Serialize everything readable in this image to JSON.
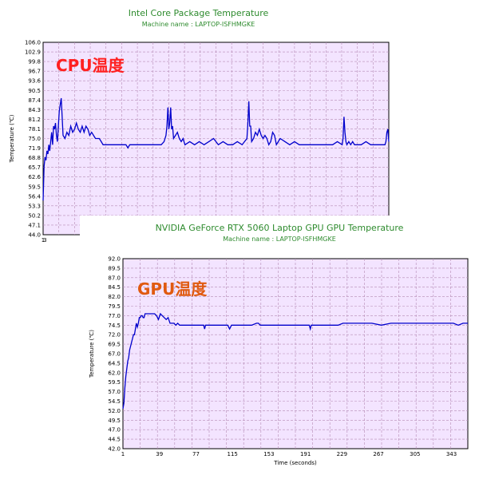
{
  "colors": {
    "cpu_label": "#ff2020",
    "gpu_label": "#e05a10",
    "plot_bg": "#f3e4ff",
    "line": "#0000cc",
    "grid": "#b58ab5",
    "title": "#2e8b2e"
  },
  "chart_data": [
    {
      "type": "line",
      "title": "Intel Core Package Temperature",
      "subtitle": "Machine name : LAPTOP-ISFHMGKE",
      "overlay_label": "CPU温度",
      "ylabel": "Temperature (℃)",
      "xlabel": "",
      "ylim": [
        44.0,
        106.0
      ],
      "yticks": [
        "106.0",
        "102.9",
        "99.8",
        "96.7",
        "93.6",
        "90.5",
        "87.4",
        "84.3",
        "81.2",
        "78.1",
        "75.0",
        "71.9",
        "68.8",
        "65.7",
        "62.6",
        "59.5",
        "56.4",
        "53.3",
        "50.2",
        "47.1",
        "44.0"
      ],
      "xlim": [
        1,
        364
      ],
      "xticks": [
        "1",
        "3"
      ],
      "grid": true,
      "series": [
        {
          "x": [
            1,
            2,
            3,
            4,
            5,
            6,
            7,
            8,
            9,
            10,
            11,
            12,
            13,
            14,
            15,
            16,
            17,
            18,
            20,
            22,
            24,
            26,
            28,
            30,
            32,
            34,
            36,
            38,
            40,
            42,
            44,
            46,
            48,
            50,
            52,
            54,
            56,
            58,
            60,
            62,
            64,
            66,
            68,
            70,
            72,
            74,
            76,
            78,
            80,
            82,
            84,
            86,
            88,
            90,
            92,
            94,
            96,
            100,
            110,
            120,
            125,
            128,
            130,
            131,
            132,
            133,
            134,
            135,
            136,
            137,
            138,
            140,
            142,
            144,
            146,
            148,
            150,
            155,
            160,
            165,
            170,
            175,
            180,
            185,
            190,
            195,
            200,
            205,
            210,
            215,
            216,
            217,
            218,
            219,
            220,
            222,
            224,
            226,
            228,
            230,
            232,
            234,
            236,
            238,
            240,
            242,
            244,
            246,
            248,
            250,
            255,
            260,
            265,
            270,
            275,
            280,
            290,
            300,
            305,
            310,
            315,
            316,
            317,
            318,
            319,
            320,
            322,
            324,
            326,
            328,
            330,
            335,
            340,
            345,
            350,
            355,
            360,
            361,
            362,
            363,
            364
          ],
          "y": [
            55,
            66,
            69,
            68,
            71,
            70,
            73,
            71,
            74,
            77,
            73,
            79,
            78,
            80,
            76,
            74,
            79,
            84,
            88,
            76,
            75,
            77,
            76,
            79,
            77,
            78,
            80,
            78,
            77,
            79,
            77,
            79,
            78,
            76,
            77,
            76,
            75,
            75,
            75,
            74,
            73,
            73,
            73,
            73,
            73,
            73,
            73,
            73,
            73,
            73,
            73,
            73,
            73,
            72,
            73,
            73,
            73,
            73,
            73,
            73,
            73,
            74,
            76,
            79,
            85,
            78,
            80,
            85,
            78,
            79,
            75,
            76,
            77,
            75,
            74,
            75,
            73,
            74,
            73,
            74,
            73,
            74,
            75,
            73,
            74,
            73,
            73,
            74,
            73,
            75,
            80,
            87,
            79,
            79,
            74,
            75,
            77,
            76,
            78,
            76,
            75,
            76,
            75,
            73,
            74,
            77,
            76,
            73,
            74,
            75,
            74,
            73,
            74,
            73,
            73,
            73,
            73,
            73,
            73,
            74,
            73,
            75,
            82,
            77,
            74,
            73,
            74,
            73,
            74,
            73,
            73,
            73,
            74,
            73,
            73,
            73,
            73,
            74,
            77,
            78,
            74
          ]
        }
      ]
    },
    {
      "type": "line",
      "title": "NVIDIA GeForce RTX 5060 Laptop GPU GPU Temperature",
      "subtitle": "Machine name : LAPTOP-ISFHMGKE",
      "overlay_label": "GPU温度",
      "ylabel": "Temperature (℃)",
      "xlabel": "Time (seconds)",
      "ylim": [
        42.0,
        92.0
      ],
      "yticks": [
        "92.0",
        "89.5",
        "87.0",
        "84.5",
        "82.0",
        "79.5",
        "77.0",
        "74.5",
        "72.0",
        "69.5",
        "67.0",
        "64.5",
        "62.0",
        "59.5",
        "57.0",
        "54.5",
        "52.0",
        "49.5",
        "47.0",
        "44.5",
        "42.0"
      ],
      "xlim": [
        1,
        360
      ],
      "xticks": [
        "1",
        "39",
        "77",
        "115",
        "153",
        "191",
        "229",
        "267",
        "305",
        "343"
      ],
      "grid": true,
      "series": [
        {
          "x": [
            1,
            2,
            3,
            4,
            5,
            6,
            7,
            8,
            9,
            10,
            11,
            12,
            13,
            14,
            15,
            16,
            17,
            18,
            19,
            20,
            21,
            22,
            23,
            24,
            25,
            26,
            28,
            30,
            32,
            34,
            36,
            38,
            40,
            42,
            44,
            46,
            48,
            50,
            52,
            54,
            56,
            58,
            60,
            62,
            64,
            66,
            70,
            75,
            80,
            85,
            86,
            87,
            88,
            90,
            95,
            100,
            105,
            110,
            112,
            114,
            120,
            125,
            130,
            135,
            140,
            142,
            144,
            150,
            160,
            170,
            175,
            180,
            190,
            195,
            196,
            197,
            200,
            210,
            220,
            225,
            230,
            240,
            250,
            260,
            270,
            280,
            290,
            300,
            310,
            320,
            330,
            340,
            345,
            350,
            355,
            360
          ],
          "y": [
            52.5,
            54,
            58,
            61,
            63,
            65,
            66,
            68,
            69,
            70,
            71,
            72,
            72,
            73.5,
            75,
            74,
            75,
            76.5,
            76.5,
            77,
            77,
            76.5,
            76.5,
            77.5,
            77.5,
            77.5,
            77.5,
            77.5,
            77.5,
            77.5,
            77,
            76,
            77.5,
            77,
            76.5,
            76,
            76.5,
            75,
            75,
            75,
            74.5,
            75,
            74.5,
            74.5,
            74.5,
            74.5,
            74.5,
            74.5,
            74.5,
            74.5,
            73.5,
            74.5,
            74.5,
            74.5,
            74.5,
            74.5,
            74.5,
            74.5,
            73.5,
            74.5,
            74.5,
            74.5,
            74.5,
            74.5,
            75,
            75,
            74.5,
            74.5,
            74.5,
            74.5,
            74.5,
            74.5,
            74.5,
            74.5,
            73.5,
            74.5,
            74.5,
            74.5,
            74.5,
            74.5,
            75,
            75,
            75,
            75,
            74.5,
            75,
            75,
            75,
            75,
            75,
            75,
            75,
            75,
            74.5,
            75,
            75
          ]
        }
      ]
    }
  ]
}
